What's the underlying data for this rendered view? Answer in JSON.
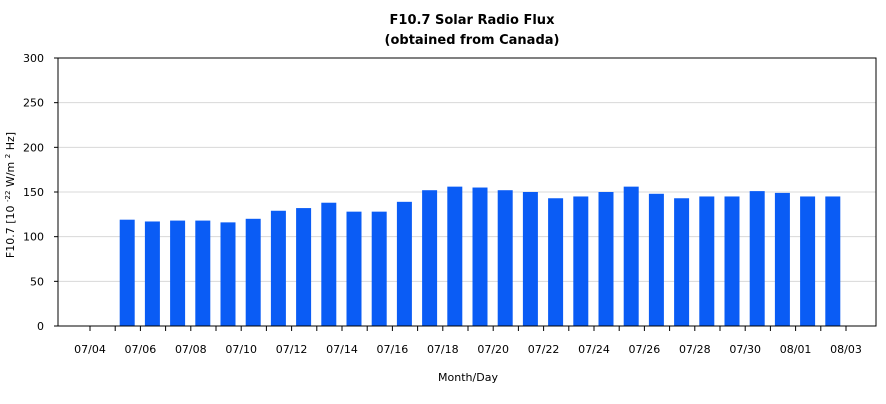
{
  "chart_data": {
    "type": "bar",
    "title": "F10.7 Solar Radio Flux",
    "subtitle": "(obtained from Canada)",
    "xlabel": "Month/Day",
    "ylabel": {
      "prefix": "F10.7 [10",
      "exp1": "-22",
      "mid": "W/m",
      "exp2": "2",
      "suffix": "Hz]"
    },
    "ylim": [
      0,
      300
    ],
    "yticks": [
      0,
      50,
      100,
      150,
      200,
      250,
      300
    ],
    "grid": true,
    "bar_color": "#0a5cf5",
    "categories": [
      "07/04",
      "07/05",
      "07/06",
      "07/07",
      "07/08",
      "07/09",
      "07/10",
      "07/11",
      "07/12",
      "07/13",
      "07/14",
      "07/15",
      "07/16",
      "07/17",
      "07/18",
      "07/19",
      "07/20",
      "07/21",
      "07/22",
      "07/23",
      "07/24",
      "07/25",
      "07/26",
      "07/27",
      "07/28",
      "07/29",
      "07/30",
      "07/31",
      "08/01",
      "08/02",
      "08/03"
    ],
    "values": [
      null,
      119,
      117,
      118,
      118,
      116,
      120,
      129,
      132,
      138,
      128,
      128,
      139,
      152,
      156,
      155,
      152,
      150,
      143,
      145,
      150,
      156,
      148,
      143,
      145,
      145,
      151,
      149,
      145,
      145,
      null
    ],
    "tick_labels": [
      "07/04",
      "07/06",
      "07/08",
      "07/10",
      "07/12",
      "07/14",
      "07/16",
      "07/18",
      "07/20",
      "07/22",
      "07/24",
      "07/26",
      "07/28",
      "07/30",
      "08/01",
      "08/03"
    ]
  }
}
